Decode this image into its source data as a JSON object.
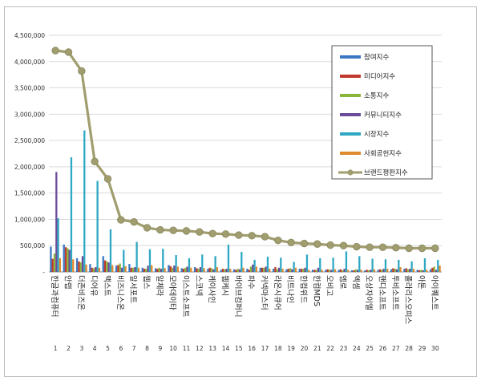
{
  "chart_data": {
    "type": "bar",
    "title": "",
    "xlabel": "",
    "ylabel": "",
    "ylim": [
      0,
      4500000
    ],
    "yticks": [
      0,
      500000,
      1000000,
      1500000,
      2000000,
      2500000,
      3000000,
      3500000,
      4000000,
      4500000
    ],
    "ytick_labels": [
      "-",
      "500,000",
      "1,000,000",
      "1,500,000",
      "2,000,000",
      "2,500,000",
      "3,000,000",
      "3,500,000",
      "4,000,000",
      "4,500,000"
    ],
    "ranks": [
      "1",
      "2",
      "3",
      "4",
      "5",
      "6",
      "7",
      "8",
      "9",
      "10",
      "11",
      "12",
      "13",
      "14",
      "15",
      "16",
      "17",
      "18",
      "19",
      "20",
      "21",
      "22",
      "23",
      "24",
      "25",
      "26",
      "27",
      "28",
      "29",
      "30"
    ],
    "categories": [
      "한글과컴퓨터",
      "안랩",
      "더존비즈온",
      "디어유",
      "맥스트",
      "비즈니스온",
      "알서포트",
      "웹스",
      "알체라",
      "모아데이타",
      "이스트소프트",
      "스코넥",
      "케이사인",
      "웹케시",
      "바이브컴퍼니",
      "파수",
      "커넥마스터",
      "라온시큐어",
      "비트나인",
      "한컴위드",
      "한컴MDS",
      "오비고",
      "엠로",
      "엑셈",
      "오상자이엘",
      "핸디소프트",
      "투비소프트",
      "폴라리스오피스",
      "아톤",
      "아이퀘스트"
    ],
    "legend_position": "top-right",
    "series": [
      {
        "name": "참여지수",
        "color": "#3a78c2",
        "chart_type": "bar",
        "values": [
          480000,
          520000,
          260000,
          150000,
          300000,
          120000,
          150000,
          80000,
          70000,
          130000,
          70000,
          90000,
          60000,
          40000,
          50000,
          60000,
          80000,
          60000,
          50000,
          60000,
          40000,
          40000,
          40000,
          30000,
          30000,
          40000,
          50000,
          60000,
          40000,
          50000
        ]
      },
      {
        "name": "미디어지수",
        "color": "#c0392b",
        "chart_type": "bar",
        "values": [
          250000,
          470000,
          200000,
          80000,
          220000,
          130000,
          80000,
          60000,
          60000,
          110000,
          60000,
          70000,
          80000,
          60000,
          40000,
          40000,
          80000,
          90000,
          60000,
          60000,
          40000,
          50000,
          50000,
          30000,
          40000,
          50000,
          70000,
          70000,
          30000,
          80000
        ]
      },
      {
        "name": "소통지수",
        "color": "#8bb63a",
        "chart_type": "bar",
        "values": [
          350000,
          450000,
          180000,
          70000,
          200000,
          160000,
          80000,
          60000,
          80000,
          80000,
          80000,
          60000,
          70000,
          50000,
          60000,
          100000,
          80000,
          50000,
          70000,
          60000,
          40000,
          40000,
          30000,
          50000,
          30000,
          40000,
          60000,
          50000,
          40000,
          100000
        ]
      },
      {
        "name": "커뮤니티지수",
        "color": "#6b4c9a",
        "chart_type": "bar",
        "values": [
          1900000,
          420000,
          300000,
          90000,
          180000,
          80000,
          90000,
          120000,
          60000,
          120000,
          100000,
          90000,
          50000,
          60000,
          50000,
          140000,
          100000,
          80000,
          50000,
          80000,
          80000,
          40000,
          60000,
          40000,
          40000,
          60000,
          50000,
          60000,
          30000,
          40000
        ]
      },
      {
        "name": "시장지수",
        "color": "#2fa8c4",
        "chart_type": "bar",
        "values": [
          1020000,
          2180000,
          2690000,
          1730000,
          810000,
          420000,
          570000,
          430000,
          440000,
          320000,
          260000,
          330000,
          300000,
          520000,
          380000,
          230000,
          290000,
          270000,
          190000,
          330000,
          260000,
          270000,
          390000,
          300000,
          250000,
          240000,
          230000,
          200000,
          260000,
          230000
        ]
      },
      {
        "name": "사회공헌지수",
        "color": "#e08a2e",
        "chart_type": "bar",
        "values": [
          260000,
          240000,
          140000,
          80000,
          130000,
          110000,
          80000,
          130000,
          70000,
          100000,
          80000,
          70000,
          90000,
          60000,
          80000,
          100000,
          60000,
          60000,
          80000,
          40000,
          40000,
          50000,
          40000,
          40000,
          50000,
          60000,
          90000,
          60000,
          40000,
          120000
        ]
      },
      {
        "name": "브랜드평판지수",
        "color": "#a09d6e",
        "chart_type": "line",
        "values": [
          4210000,
          4180000,
          3820000,
          2100000,
          1770000,
          990000,
          950000,
          840000,
          800000,
          790000,
          780000,
          760000,
          730000,
          720000,
          700000,
          690000,
          670000,
          600000,
          560000,
          540000,
          530000,
          510000,
          500000,
          480000,
          470000,
          470000,
          460000,
          450000,
          450000,
          450000
        ]
      }
    ]
  }
}
